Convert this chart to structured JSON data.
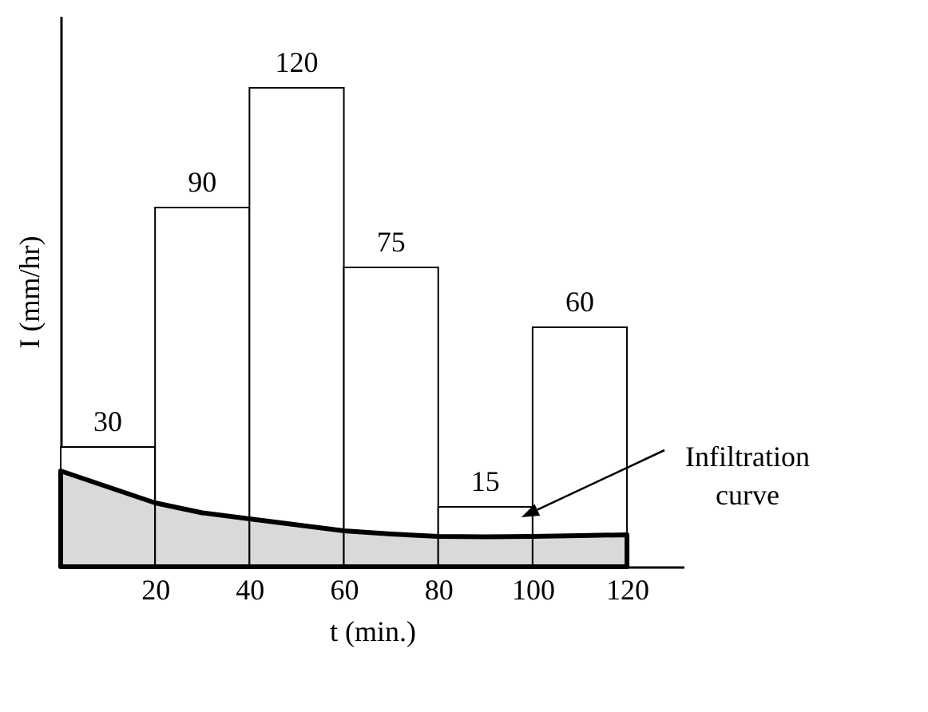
{
  "chart_data": {
    "type": "histogram",
    "xlabel": "t (min.)",
    "ylabel": "I (mm/hr)",
    "bins": [
      0,
      20,
      40,
      60,
      80,
      100,
      120
    ],
    "values": [
      30,
      90,
      120,
      75,
      15,
      60
    ],
    "color": "#ffffff",
    "value_labels": [
      "30",
      "90",
      "120",
      "75",
      "15",
      "60"
    ],
    "series": [
      {
        "type": "area",
        "x": [
          0,
          10,
          20,
          30,
          40,
          50,
          60,
          70,
          80,
          90,
          100,
          110,
          120
        ],
        "values": [
          24,
          20,
          16,
          13.5,
          12,
          10.5,
          9,
          8.2,
          7.6,
          7.5,
          7.6,
          7.8,
          8
        ],
        "color": "#000000"
      }
    ],
    "xlim": [
      0,
      132
    ],
    "xticks": [
      20,
      40,
      60,
      80,
      100,
      120
    ],
    "tick_labels": "x",
    "grid": false,
    "annotations": [
      "Infiltration\ncurve"
    ]
  }
}
